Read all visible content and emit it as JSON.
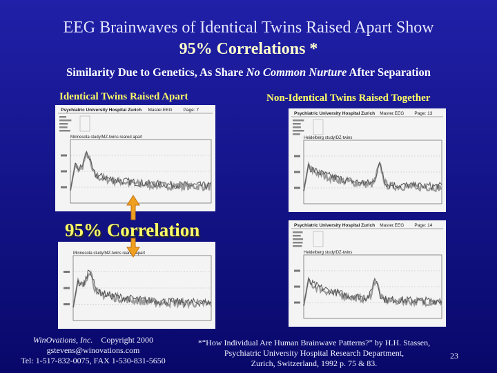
{
  "title": {
    "line1": "EEG Brainwaves of Identical Twins Raised Apart Show",
    "line2": "95% Correlations *"
  },
  "subtitle": {
    "before": "Similarity Due to Genetics, As Share ",
    "emphasis": "No Common Nurture",
    "after": " After Separation"
  },
  "left_heading": "Identical Twins Raised Apart",
  "right_heading": "Non-Identical Twins Raised Together",
  "panels": [
    {
      "header": "Psychiatric University Hospital Zurich",
      "file": "Master.EEG",
      "page": "Page: 7",
      "study": "Minnesota study/MZ-twins reared apart"
    },
    {
      "header": "Psychiatric University Hospital Zurich",
      "file": "Master.EEG",
      "page": "Page: 13",
      "study": "Heidelberg study/DZ-twins"
    },
    {
      "header": "Psychiatric University Hospital Zurich",
      "file": "Master.EEG",
      "page": "Page: 14",
      "study": "Heidelberg study/DZ-twins"
    },
    {
      "study": "Minnesota study/MZ-twins reared apart"
    }
  ],
  "callout": "95% Correlation",
  "footer_left": {
    "company": "WinOvations, Inc.",
    "copyright": "Copyright 2000",
    "email": "gstevens@winovations.com",
    "phone": "Tel: 1-517-832-0075, FAX 1-530-831-5650"
  },
  "footer_right": [
    "*“How Individual Are Human Brainwave Patterns?” by H.H. Stassen,",
    "Psychiatric University Hospital Research Department,",
    "Zurich, Switzerland, 1992 p. 75 & 83."
  ],
  "page_number": "23"
}
